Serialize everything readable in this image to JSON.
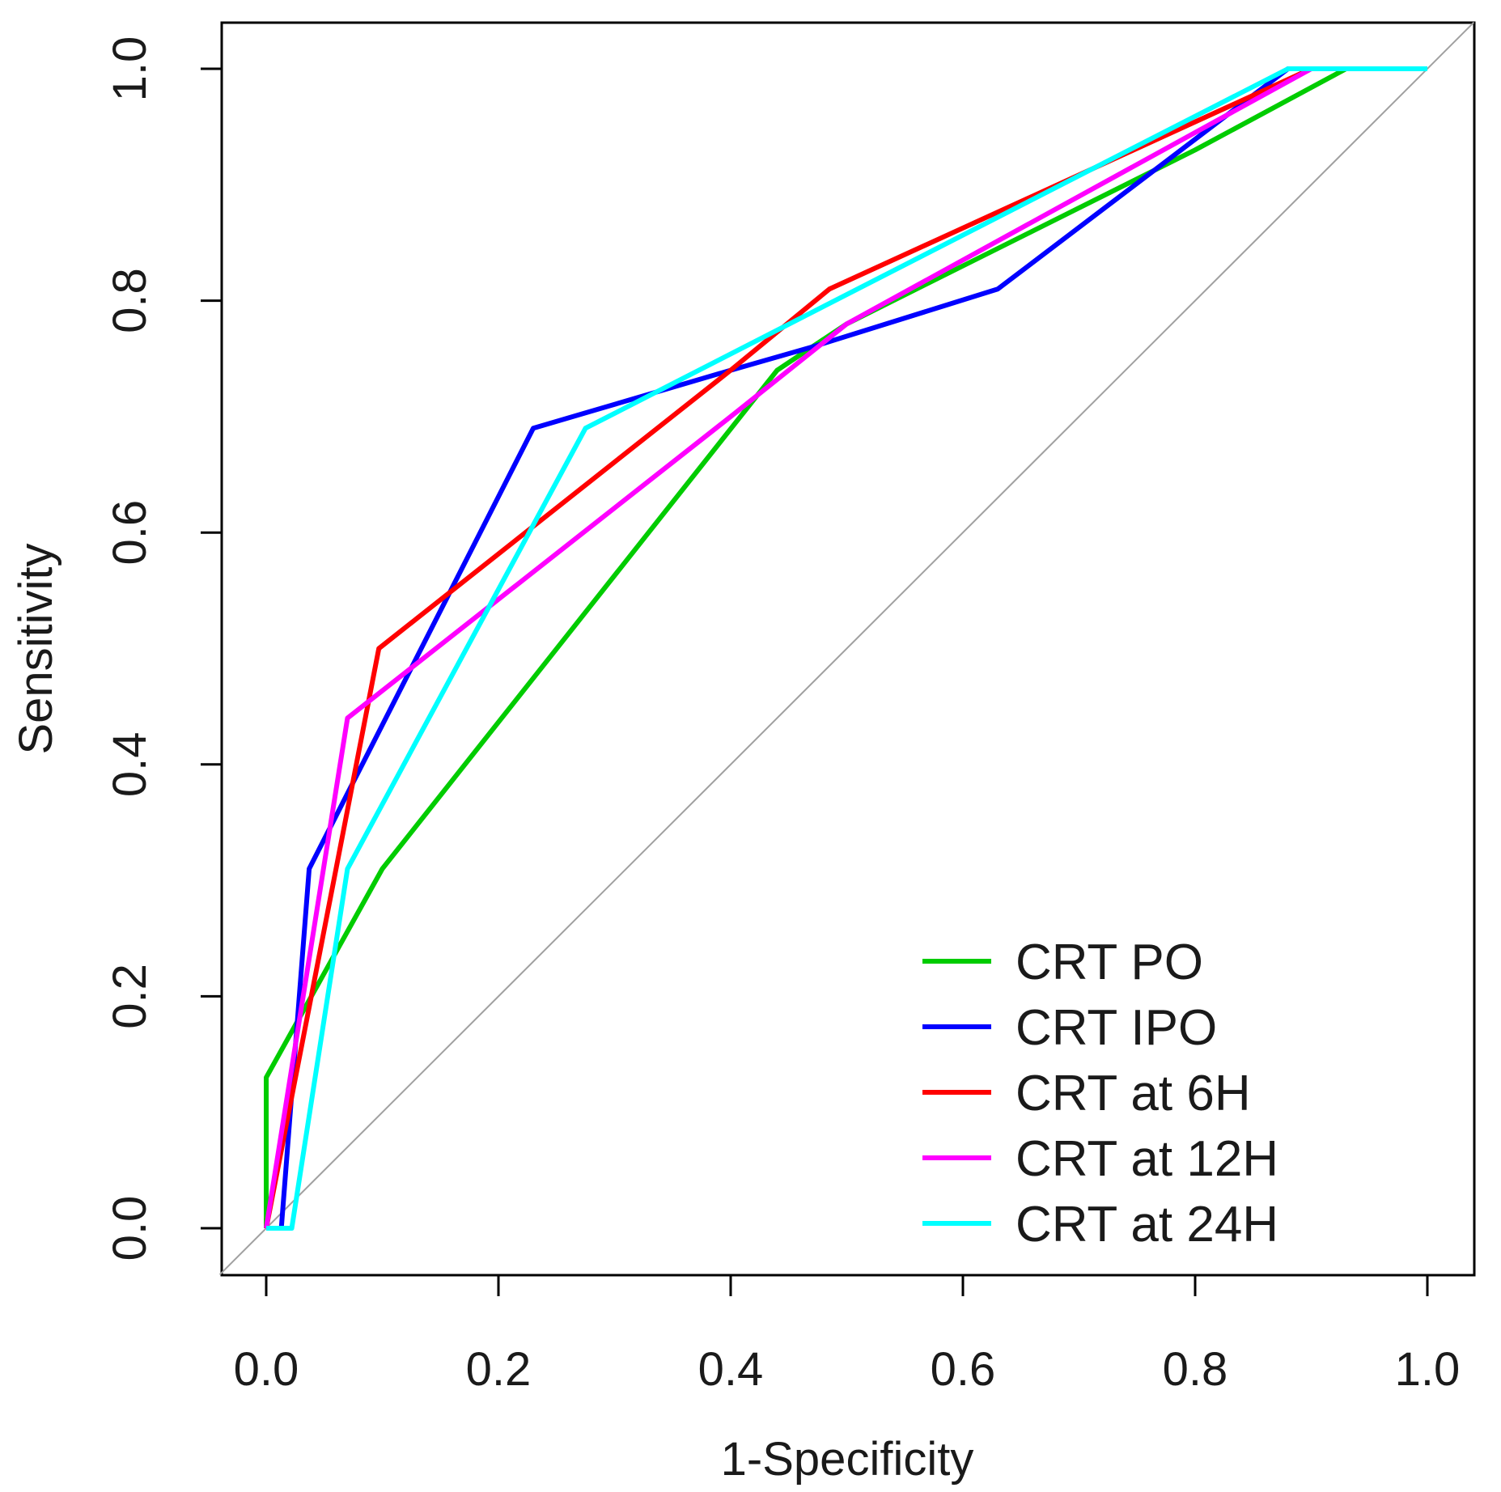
{
  "chart_data": {
    "type": "line",
    "title": "",
    "xlabel": "1-Specificity",
    "ylabel": "Sensitivity",
    "xlim": [
      0.0,
      1.0
    ],
    "ylim": [
      0.0,
      1.0
    ],
    "xticks": [
      "0.0",
      "0.2",
      "0.4",
      "0.6",
      "0.8",
      "1.0"
    ],
    "yticks": [
      "0.0",
      "0.2",
      "0.4",
      "0.6",
      "0.8",
      "1.0"
    ],
    "grid": false,
    "legend_position": "bottom-right",
    "reference_line": {
      "from": [
        0,
        0
      ],
      "to": [
        1,
        1
      ],
      "color": "#a0a0a0"
    },
    "series": [
      {
        "name": "CRT PO",
        "color": "#00cc00",
        "x": [
          0.0,
          0.0,
          0.1,
          0.44,
          0.5,
          0.8,
          0.93,
          1.0
        ],
        "y": [
          0.0,
          0.13,
          0.31,
          0.74,
          0.78,
          0.93,
          1.0,
          1.0
        ]
      },
      {
        "name": "CRT IPO",
        "color": "#0000ff",
        "x": [
          0.0,
          0.013,
          0.037,
          0.23,
          0.4,
          0.47,
          0.63,
          0.88,
          1.0
        ],
        "y": [
          0.0,
          0.0,
          0.31,
          0.69,
          0.74,
          0.76,
          0.81,
          1.0,
          1.0
        ]
      },
      {
        "name": "CRT at 6H",
        "color": "#ff0000",
        "x": [
          0.0,
          0.097,
          0.4,
          0.485,
          0.9,
          1.0
        ],
        "y": [
          0.0,
          0.5,
          0.74,
          0.81,
          1.0,
          1.0
        ]
      },
      {
        "name": "CRT at 12H",
        "color": "#ff00ff",
        "x": [
          0.0,
          0.07,
          0.4,
          0.5,
          0.9,
          1.0
        ],
        "y": [
          0.0,
          0.44,
          0.7,
          0.78,
          1.0,
          1.0
        ]
      },
      {
        "name": "CRT at 24H",
        "color": "#00ffff",
        "x": [
          0.0,
          0.022,
          0.07,
          0.275,
          0.88,
          1.0
        ],
        "y": [
          0.0,
          0.0,
          0.31,
          0.69,
          1.0,
          1.0
        ]
      }
    ]
  }
}
